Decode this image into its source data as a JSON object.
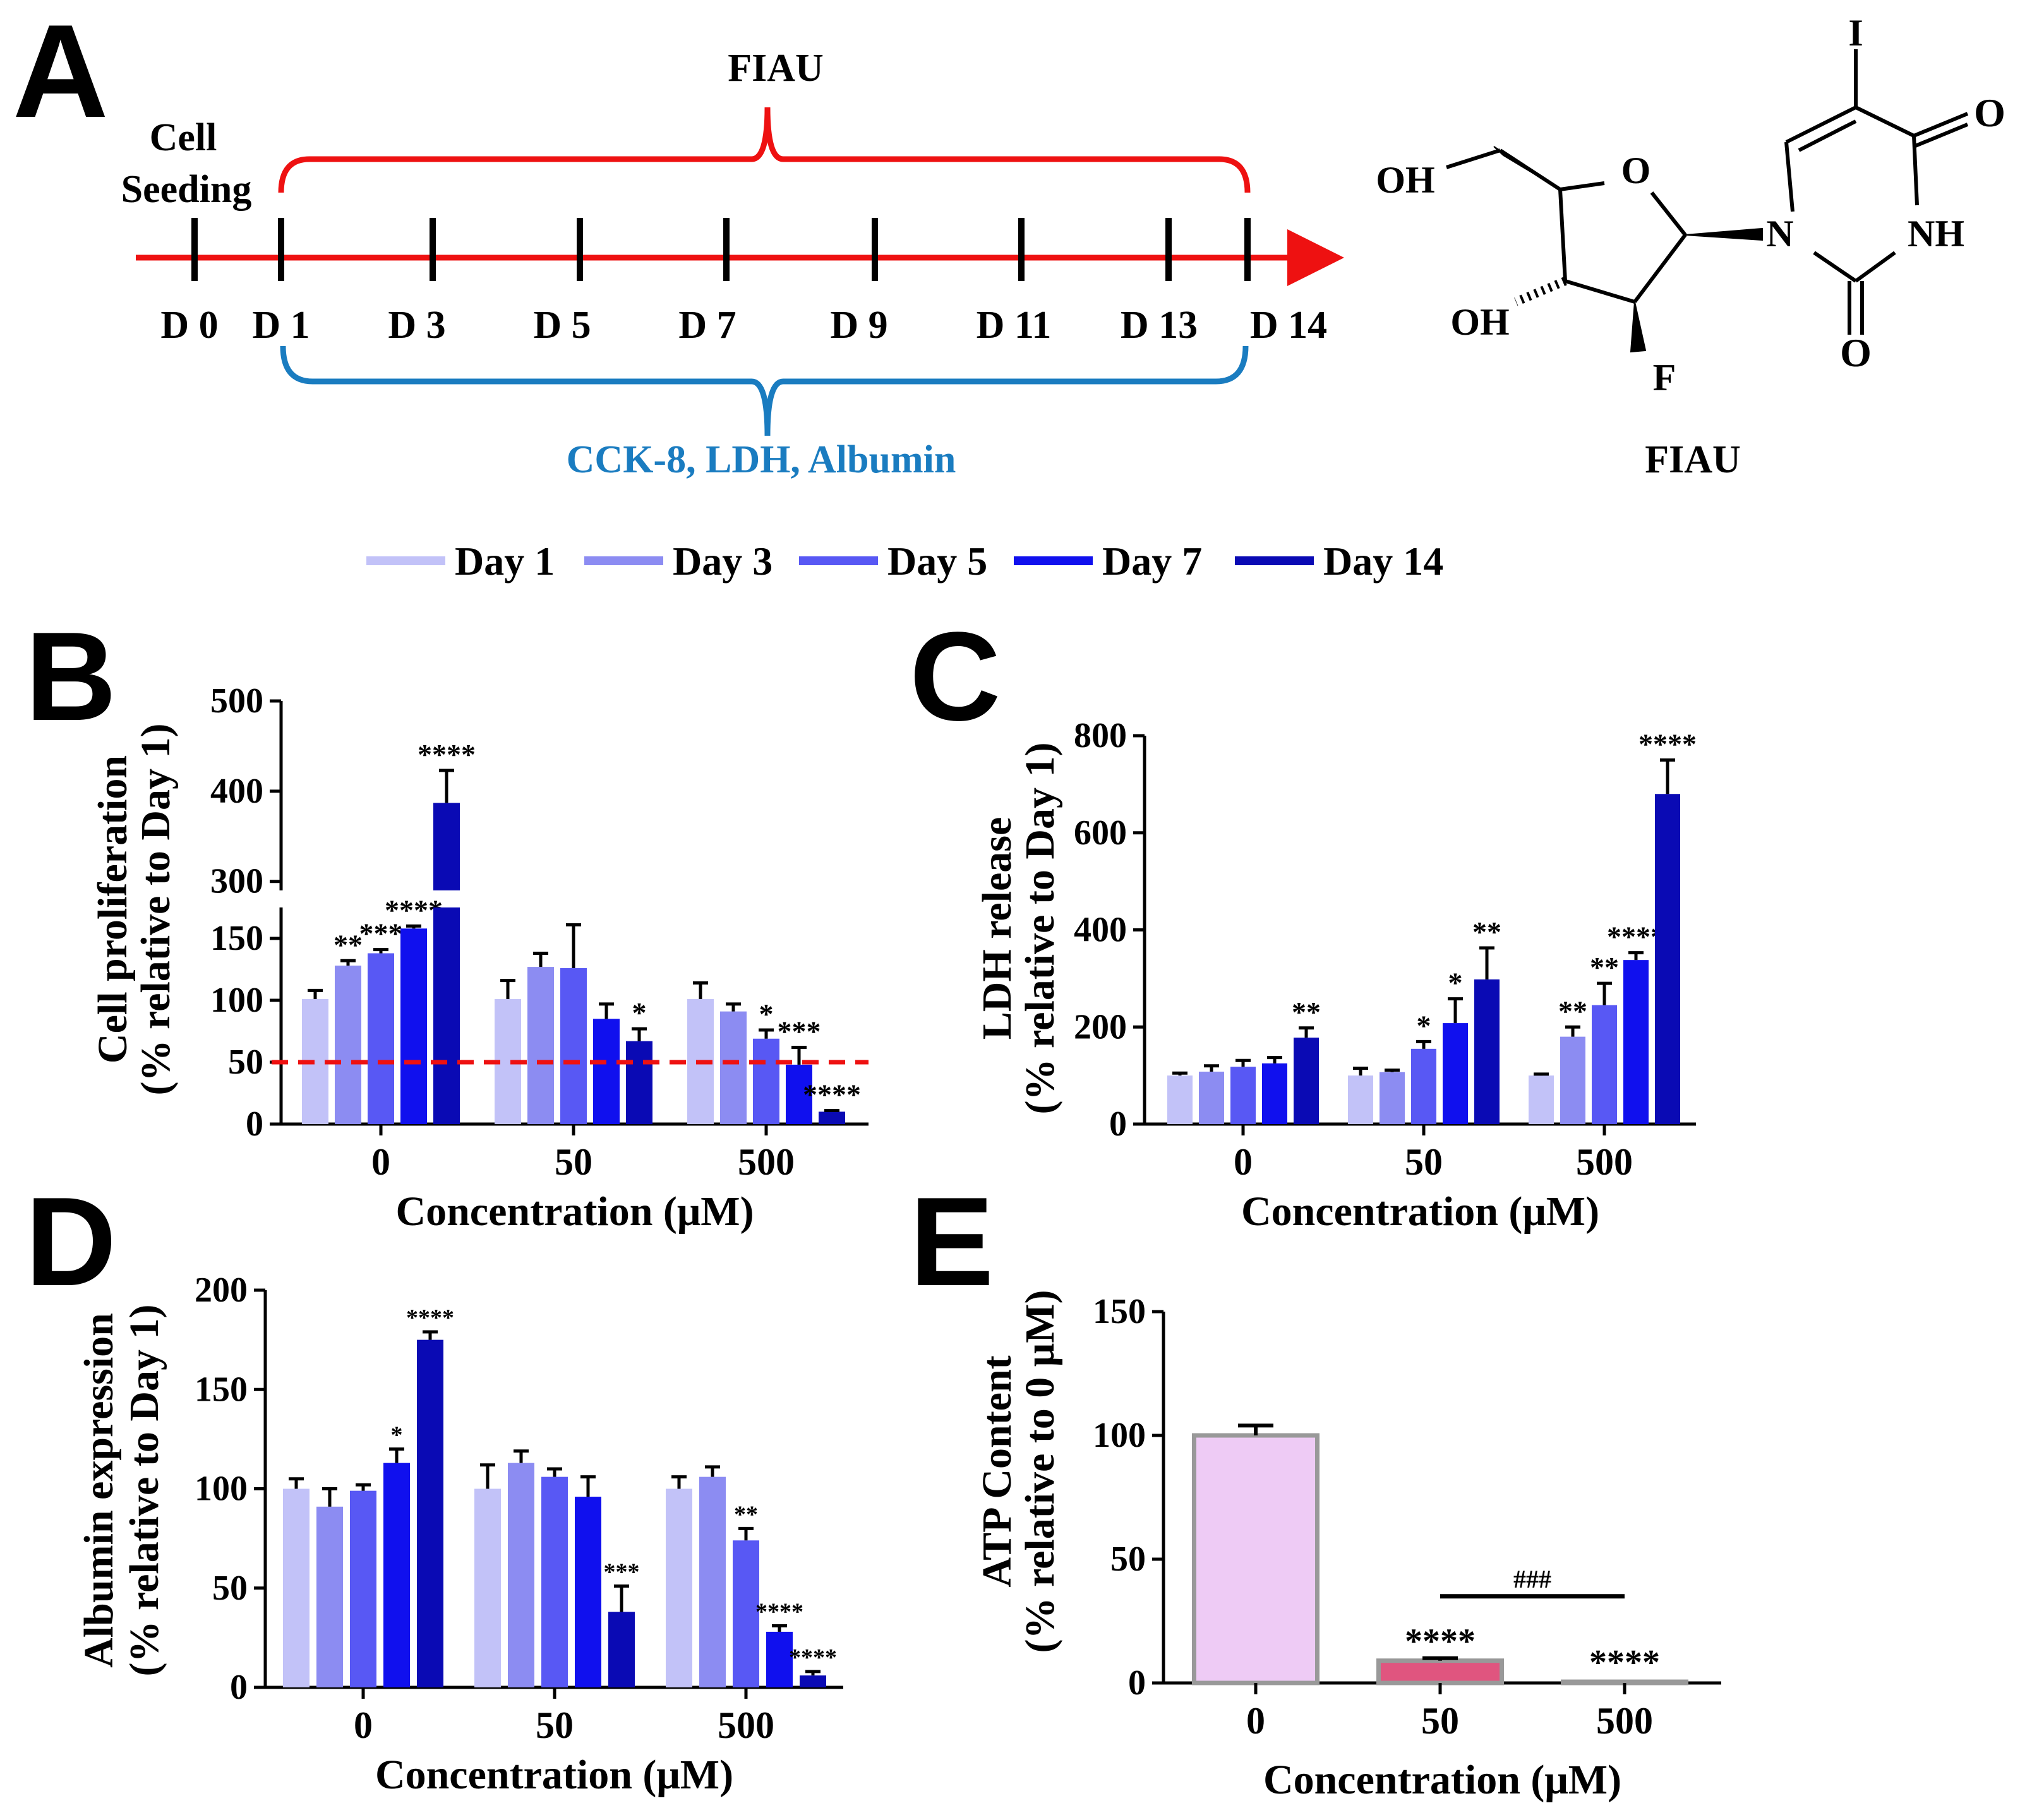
{
  "colors": {
    "day1": "#c2c2f8",
    "day3": "#8c8cf2",
    "day5": "#5858f4",
    "day7": "#1010ee",
    "day14": "#0a0ab4",
    "timeline_red": "#ee1111",
    "bracket_blue": "#1a7cc0",
    "atp_0": "#eecbf5",
    "atp_50": "#e0557f",
    "atp_500": "#f0c0d0"
  },
  "panel_labels": {
    "a": "A",
    "b": "B",
    "c": "C",
    "d": "D",
    "e": "E"
  },
  "timeline": {
    "drug_label": "FIAU",
    "cell_seeding_1": "Cell",
    "cell_seeding_2": "Seeding",
    "day_labels": [
      "D 0",
      "D 1",
      "D 3",
      "D 5",
      "D 7",
      "D 9",
      "D 11",
      "D 13",
      "D 14"
    ],
    "assay_label": "CCK-8, LDH, Albumin"
  },
  "molecule": {
    "name": "FIAU",
    "atoms": {
      "iodine": "I",
      "oxygen_ring": "O",
      "oxygen_top": "O",
      "oxygen_bottom": "O",
      "nitrogen": "N",
      "nh": "NH",
      "hydroxyl_top": "OH",
      "hydroxyl_bottom": "OH",
      "fluorine": "F"
    }
  },
  "legend": [
    "Day 1",
    "Day 3",
    "Day 5",
    "Day 7",
    "Day 14"
  ],
  "chart_data": [
    {
      "panel": "B",
      "type": "bar",
      "xlabel": "Concentration (μM)",
      "ylabel_line1": "Cell proliferation",
      "ylabel_line2": "(% relative to Day 1)",
      "categories": [
        "0",
        "50",
        "500"
      ],
      "axis_break": {
        "lower": [
          0,
          175
        ],
        "upper": [
          290,
          500
        ]
      },
      "yticks_lower": [
        "0",
        "50",
        "100",
        "150"
      ],
      "yticks_upper": [
        "300",
        "400",
        "500"
      ],
      "reference_line": 50,
      "series": [
        {
          "name": "Day 1",
          "values": [
            101,
            101,
            101
          ],
          "errors": [
            7,
            15,
            13
          ],
          "stars": [
            "",
            "",
            ""
          ]
        },
        {
          "name": "Day 3",
          "values": [
            128,
            127,
            91
          ],
          "errors": [
            4,
            11,
            6
          ],
          "stars": [
            "**",
            "",
            ""
          ]
        },
        {
          "name": "Day 5",
          "values": [
            138,
            126,
            69
          ],
          "errors": [
            3,
            35,
            7
          ],
          "stars": [
            "***",
            "",
            "*"
          ]
        },
        {
          "name": "Day 7",
          "values": [
            158,
            85,
            48
          ],
          "errors": [
            2,
            12,
            14
          ],
          "stars": [
            "****",
            "",
            "***"
          ]
        },
        {
          "name": "Day 14",
          "values": [
            387,
            67,
            10
          ],
          "errors": [
            36,
            10,
            1
          ],
          "stars": [
            "****",
            "*",
            "****"
          ]
        }
      ]
    },
    {
      "panel": "C",
      "type": "bar",
      "xlabel": "Concentration (μM)",
      "ylabel_line1": "LDH release",
      "ylabel_line2": "(% relative to Day 1)",
      "categories": [
        "0",
        "50",
        "500"
      ],
      "ylim": [
        0,
        800
      ],
      "yticks": [
        "0",
        "200",
        "400",
        "600",
        "800"
      ],
      "series": [
        {
          "name": "Day 1",
          "values": [
            100,
            100,
            100
          ],
          "errors": [
            5,
            15,
            3
          ],
          "stars": [
            "",
            "",
            ""
          ]
        },
        {
          "name": "Day 3",
          "values": [
            108,
            107,
            180
          ],
          "errors": [
            12,
            4,
            20
          ],
          "stars": [
            "",
            "",
            "**"
          ]
        },
        {
          "name": "Day 5",
          "values": [
            118,
            155,
            245
          ],
          "errors": [
            13,
            15,
            45
          ],
          "stars": [
            "",
            "*",
            "**"
          ]
        },
        {
          "name": "Day 7",
          "values": [
            125,
            208,
            338
          ],
          "errors": [
            12,
            50,
            15
          ],
          "stars": [
            "",
            "*",
            "****"
          ]
        },
        {
          "name": "Day 14",
          "values": [
            178,
            298,
            680
          ],
          "errors": [
            20,
            65,
            70
          ],
          "stars": [
            "**",
            "**",
            "****"
          ]
        }
      ]
    },
    {
      "panel": "D",
      "type": "bar",
      "xlabel": "Concentration (μM)",
      "ylabel_line1": "Albumin expression",
      "ylabel_line2": "(% relative to Day 1)",
      "categories": [
        "0",
        "50",
        "500"
      ],
      "ylim": [
        0,
        200
      ],
      "yticks": [
        "0",
        "50",
        "100",
        "150",
        "200"
      ],
      "series": [
        {
          "name": "Day 1",
          "values": [
            100,
            100,
            100
          ],
          "errors": [
            5,
            12,
            6
          ],
          "stars": [
            "",
            "",
            ""
          ]
        },
        {
          "name": "Day 3",
          "values": [
            91,
            113,
            106
          ],
          "errors": [
            9,
            6,
            5
          ],
          "stars": [
            "",
            "",
            ""
          ]
        },
        {
          "name": "Day 5",
          "values": [
            99,
            106,
            74
          ],
          "errors": [
            3,
            4,
            6
          ],
          "stars": [
            "",
            "",
            "**"
          ]
        },
        {
          "name": "Day 7",
          "values": [
            113,
            96,
            28
          ],
          "errors": [
            7,
            10,
            3
          ],
          "stars": [
            "*",
            "",
            "****"
          ]
        },
        {
          "name": "Day 14",
          "values": [
            175,
            38,
            6
          ],
          "errors": [
            4,
            13,
            2
          ],
          "stars": [
            "****",
            "***",
            "****"
          ]
        }
      ]
    },
    {
      "panel": "E",
      "type": "bar",
      "xlabel": "Concentration (μM)",
      "ylabel_line1": "ATP Content",
      "ylabel_line2": "(% relative to 0 μM)",
      "categories": [
        "0",
        "50",
        "500"
      ],
      "ylim": [
        0,
        150
      ],
      "yticks": [
        "0",
        "50",
        "100",
        "150"
      ],
      "values": [
        100,
        9,
        0.5
      ],
      "errors": [
        4,
        1,
        0
      ],
      "stars": [
        "",
        "****",
        "****"
      ],
      "comparison": {
        "from": "50",
        "to": "500",
        "label": "###"
      }
    }
  ]
}
